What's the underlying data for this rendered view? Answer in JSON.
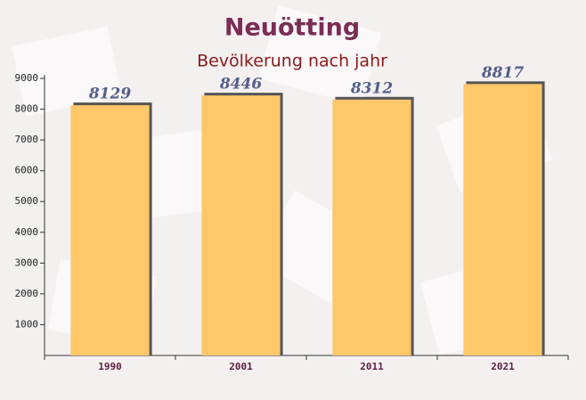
{
  "chart_data": {
    "type": "bar",
    "title": "Neuötting",
    "subtitle": "Bevölkerung nach jahr",
    "categories": [
      "1990",
      "2001",
      "2011",
      "2021"
    ],
    "values": [
      8129,
      8446,
      8312,
      8817
    ],
    "color": "#fdc76a",
    "ylim": [
      0,
      9000
    ],
    "yticks": [
      1000,
      2000,
      3000,
      4000,
      5000,
      6000,
      7000,
      8000,
      9000
    ]
  }
}
